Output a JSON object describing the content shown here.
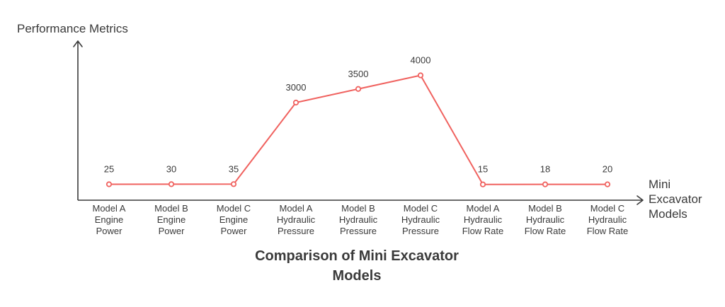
{
  "chart_data": {
    "type": "line",
    "title_lines": [
      "Comparison of Mini Excavator",
      "Models"
    ],
    "ylabel": "Performance Metrics",
    "xlabel_lines": [
      "Mini",
      "Excavator",
      "Models"
    ],
    "categories": [
      [
        "Model A",
        "Engine",
        "Power"
      ],
      [
        "Model B",
        "Engine",
        "Power"
      ],
      [
        "Model C",
        "Engine",
        "Power"
      ],
      [
        "Model A",
        "Hydraulic",
        "Pressure"
      ],
      [
        "Model B",
        "Hydraulic",
        "Pressure"
      ],
      [
        "Model C",
        "Hydraulic",
        "Pressure"
      ],
      [
        "Model A",
        "Hydraulic",
        "Flow Rate"
      ],
      [
        "Model B",
        "Hydraulic",
        "Flow Rate"
      ],
      [
        "Model C",
        "Hydraulic",
        "Flow Rate"
      ]
    ],
    "values": [
      25,
      30,
      35,
      3000,
      3500,
      4000,
      15,
      18,
      20
    ],
    "data_labels": [
      "25",
      "30",
      "35",
      "3000",
      "3500",
      "4000",
      "15",
      "18",
      "20"
    ],
    "line_color": "#f0625f",
    "axis_color": "#3a3a3a",
    "grid": false,
    "legend": "none"
  }
}
